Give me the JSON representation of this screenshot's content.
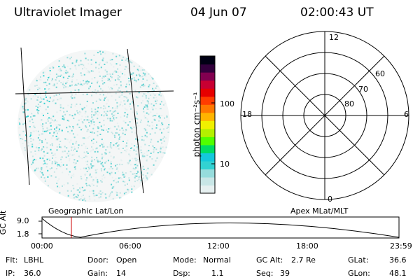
{
  "header": {
    "title": "Ultraviolet Imager",
    "date": "04 Jun 07",
    "time": "02:00:43 UT"
  },
  "colorbar": {
    "unit_label": "photon cm⁻²s⁻¹",
    "ticks": [
      "100",
      "10"
    ],
    "colors": [
      "#e6f0f0",
      "#c8e6e6",
      "#96dcdc",
      "#32d2d2",
      "#14c8dc",
      "#00dc64",
      "#50ff00",
      "#b4f000",
      "#f0f000",
      "#ffb400",
      "#ff7800",
      "#ff3c00",
      "#e60000",
      "#c80032",
      "#820050",
      "#32003c",
      "#000014"
    ]
  },
  "polar_plot": {
    "mlt_labels": {
      "top": "12",
      "left": "18",
      "right": "6",
      "bottom": "0"
    },
    "lat_labels": [
      "60",
      "70",
      "80"
    ]
  },
  "map_panel": {
    "left_label": "Geographic Lat/Lon",
    "right_label": "Apex MLat/MLT"
  },
  "altitude_strip": {
    "ylabel": "GC Alt",
    "y_ticks": [
      "9.0",
      "1.8"
    ],
    "x_ticks": [
      "00:00",
      "06:00",
      "12:00",
      "18:00",
      "23:59"
    ],
    "marker_time": "02:00:43",
    "marker_color": "#cc0000"
  },
  "status": {
    "row1": [
      {
        "label": "Flt:",
        "value": "LBHL"
      },
      {
        "label": "Door:",
        "value": "Open"
      },
      {
        "label": "Mode:",
        "value": "Normal"
      },
      {
        "label": "GC Alt:",
        "value": "2.7 Re"
      },
      {
        "label": "GLat:",
        "value": "36.6"
      }
    ],
    "row2": [
      {
        "label": "IP:",
        "value": "36.0"
      },
      {
        "label": "Gain:",
        "value": "14"
      },
      {
        "label": "Dsp:",
        "value": "1.1"
      },
      {
        "label": "Seq:",
        "value": "39"
      },
      {
        "label": "GLon:",
        "value": "48.1"
      }
    ]
  }
}
